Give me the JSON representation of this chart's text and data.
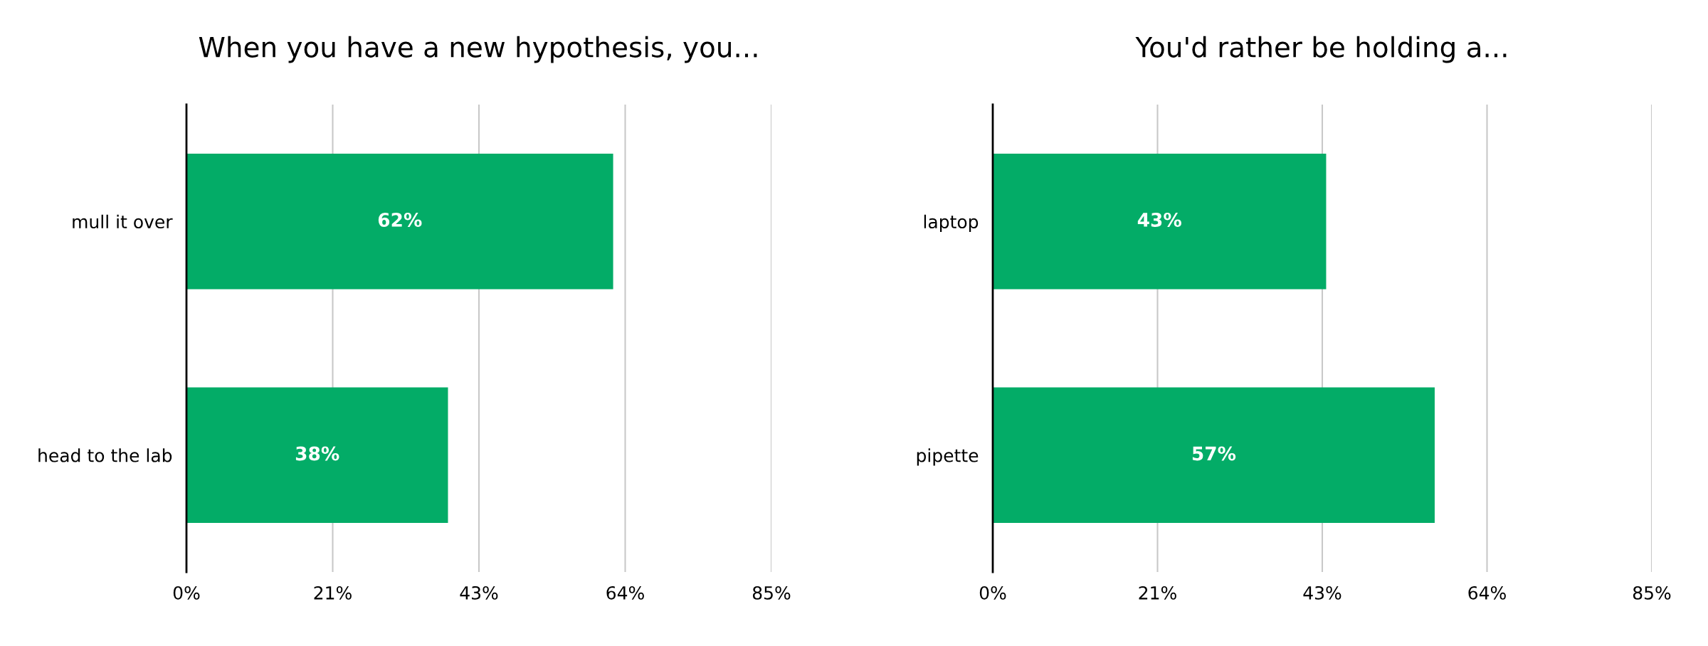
{
  "chart_data": [
    {
      "type": "bar",
      "orientation": "horizontal",
      "title": "When you have a new hypothesis, you...",
      "categories": [
        "mull it over",
        "head to the lab"
      ],
      "values": [
        62,
        38
      ],
      "value_labels": [
        "62%",
        "38%"
      ],
      "color": "#03ac67",
      "xlim": [
        0,
        85
      ],
      "xticks": [
        {
          "value": 0,
          "label": "0%"
        },
        {
          "value": 21.25,
          "label": "21%"
        },
        {
          "value": 42.5,
          "label": "43%"
        },
        {
          "value": 63.75,
          "label": "64%"
        },
        {
          "value": 85,
          "label": "85%"
        }
      ],
      "grid": "x"
    },
    {
      "type": "bar",
      "orientation": "horizontal",
      "title": "You'd rather be holding a...",
      "categories": [
        "laptop",
        "pipette"
      ],
      "values": [
        43,
        57
      ],
      "value_labels": [
        "43%",
        "57%"
      ],
      "color": "#03ac67",
      "xlim": [
        0,
        85
      ],
      "xticks": [
        {
          "value": 0,
          "label": "0%"
        },
        {
          "value": 21.25,
          "label": "21%"
        },
        {
          "value": 42.5,
          "label": "43%"
        },
        {
          "value": 63.75,
          "label": "64%"
        },
        {
          "value": 85,
          "label": "85%"
        }
      ],
      "grid": "x"
    }
  ]
}
